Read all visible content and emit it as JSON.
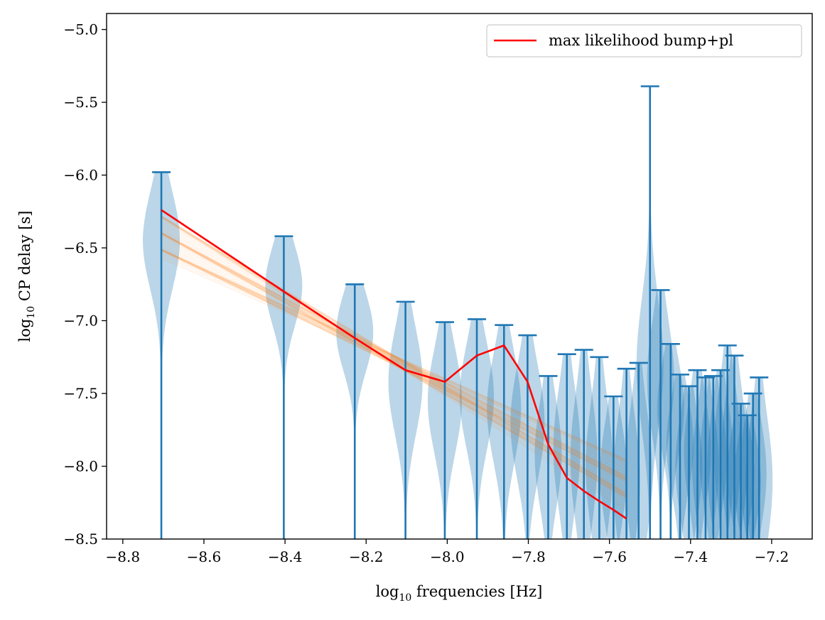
{
  "chart_data": {
    "type": "violin",
    "title": "",
    "xlabel_prefix": "log",
    "xlabel_sub": "10",
    "xlabel_rest": "  frequencies [Hz]",
    "ylabel_prefix": "log",
    "ylabel_sub": "10",
    "ylabel_rest": "  CP delay [s]",
    "xlim": [
      -8.84,
      -7.1
    ],
    "ylim": [
      -8.5,
      -4.89
    ],
    "x_ticks": [
      -8.8,
      -8.6,
      -8.4,
      -8.2,
      -8.0,
      -7.8,
      -7.6,
      -7.4,
      -7.2
    ],
    "x_tick_labels": [
      "−8.8",
      "−8.6",
      "−8.4",
      "−8.2",
      "−8.0",
      "−7.8",
      "−7.6",
      "−7.4",
      "−7.2"
    ],
    "y_ticks": [
      -5.0,
      -5.5,
      -6.0,
      -6.5,
      -7.0,
      -7.5,
      -8.0,
      -8.5
    ],
    "y_tick_labels": [
      "−5.0",
      "−5.5",
      "−6.0",
      "−6.5",
      "−7.0",
      "−7.5",
      "−8.0",
      "−8.5"
    ],
    "grid": false,
    "legend": {
      "position": "upper right",
      "entries": [
        {
          "label": "max likelihood bump+pl",
          "color": "#ff0000"
        }
      ]
    },
    "colors": {
      "violin": "#1f77b4",
      "violin_alpha": 0.3,
      "powerlaw": "#ff7f0e",
      "max_likelihood": "#ff0000"
    },
    "violins": [
      {
        "x": -8.705,
        "max": -5.98,
        "median": -6.45
      },
      {
        "x": -8.403,
        "max": -6.42,
        "median": -6.76
      },
      {
        "x": -8.228,
        "max": -6.75,
        "median": -7.08
      },
      {
        "x": -8.103,
        "max": -6.87,
        "median": -7.42
      },
      {
        "x": -8.006,
        "max": -7.01,
        "median": -7.55
      },
      {
        "x": -7.927,
        "max": -6.99,
        "median": -7.52
      },
      {
        "x": -7.86,
        "max": -7.03,
        "median": -7.6
      },
      {
        "x": -7.802,
        "max": -7.1,
        "median": -7.7
      },
      {
        "x": -7.751,
        "max": -7.38,
        "median": -7.92
      },
      {
        "x": -7.705,
        "max": -7.23,
        "median": -7.88
      },
      {
        "x": -7.663,
        "max": -7.2,
        "median": -7.95
      },
      {
        "x": -7.625,
        "max": -7.25,
        "median": -8.0
      },
      {
        "x": -7.59,
        "max": -7.52,
        "median": -8.05
      },
      {
        "x": -7.558,
        "max": -7.33,
        "median": -8.1
      },
      {
        "x": -7.528,
        "max": -7.29,
        "median": -8.05
      },
      {
        "x": -7.5,
        "max": -5.39,
        "median": -7.3
      },
      {
        "x": -7.474,
        "max": -6.79,
        "median": -7.4
      },
      {
        "x": -7.449,
        "max": -7.16,
        "median": -7.6
      },
      {
        "x": -7.426,
        "max": -7.37,
        "median": -7.85
      },
      {
        "x": -7.404,
        "max": -7.45,
        "median": -8.0
      },
      {
        "x": -7.383,
        "max": -7.34,
        "median": -7.9
      },
      {
        "x": -7.363,
        "max": -7.39,
        "median": -8.0
      },
      {
        "x": -7.344,
        "max": -7.38,
        "median": -7.95
      },
      {
        "x": -7.326,
        "max": -7.34,
        "median": -8.0
      },
      {
        "x": -7.309,
        "max": -7.17,
        "median": -7.9
      },
      {
        "x": -7.292,
        "max": -7.24,
        "median": -7.95
      },
      {
        "x": -7.276,
        "max": -7.57,
        "median": -8.05
      },
      {
        "x": -7.26,
        "max": -7.65,
        "median": -8.1
      },
      {
        "x": -7.246,
        "max": -7.5,
        "median": -8.05
      },
      {
        "x": -7.231,
        "max": -7.39,
        "median": -8.1
      }
    ],
    "powerlaw_samples": {
      "x_range": [
        -8.705,
        -7.56
      ],
      "y_start_center": -6.42,
      "y_end_center": -8.12,
      "count": 40,
      "spread_start": 0.15,
      "spread_end": 0.25
    },
    "max_likelihood": {
      "name": "max likelihood bump+pl",
      "x": [
        -8.705,
        -8.403,
        -8.228,
        -8.103,
        -8.006,
        -7.927,
        -7.86,
        -7.802,
        -7.751,
        -7.705,
        -7.663,
        -7.625,
        -7.59,
        -7.558
      ],
      "y": [
        -6.24,
        -6.8,
        -7.12,
        -7.34,
        -7.42,
        -7.24,
        -7.17,
        -7.42,
        -7.85,
        -8.08,
        -8.17,
        -8.24,
        -8.3,
        -8.36
      ]
    }
  }
}
